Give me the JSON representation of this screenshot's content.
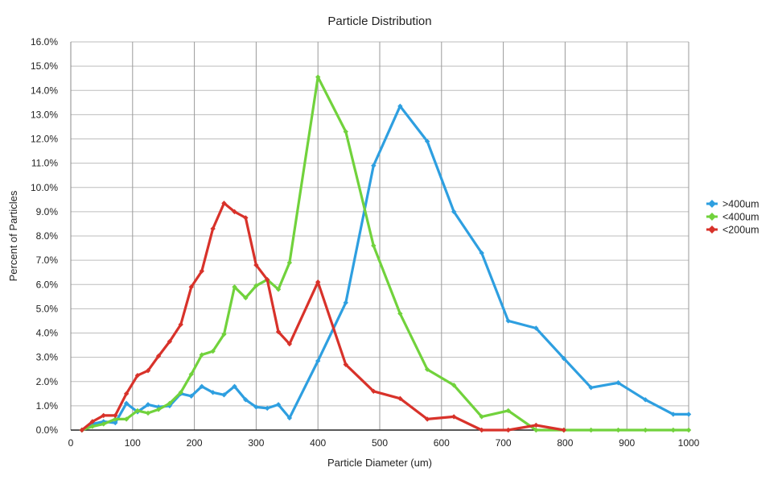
{
  "chart_data": {
    "type": "line",
    "title": "Particle Distribution",
    "xlabel": "Particle Diameter (um)",
    "ylabel": "Percent of Particles",
    "xlim": [
      0,
      1000
    ],
    "ylim": [
      0,
      16
    ],
    "x_ticks": [
      "0",
      "100",
      "200",
      "300",
      "400",
      "500",
      "600",
      "700",
      "800",
      "900",
      "1000"
    ],
    "y_ticks": [
      "0.0%",
      "1.0%",
      "2.0%",
      "3.0%",
      "4.0%",
      "5.0%",
      "6.0%",
      "7.0%",
      "8.0%",
      "9.0%",
      "10.0%",
      "11.0%",
      "12.0%",
      "13.0%",
      "14.0%",
      "15.0%",
      "16.0%"
    ],
    "grid": {
      "vertical": true,
      "horizontal": true
    },
    "legend_position": "right",
    "series": [
      {
        "name": ">400um",
        "color": "#2e9fe0",
        "points": [
          [
            18,
            0.0
          ],
          [
            35,
            0.25
          ],
          [
            53,
            0.35
          ],
          [
            72,
            0.3
          ],
          [
            90,
            1.1
          ],
          [
            108,
            0.75
          ],
          [
            125,
            1.05
          ],
          [
            142,
            0.95
          ],
          [
            160,
            1.0
          ],
          [
            178,
            1.5
          ],
          [
            195,
            1.4
          ],
          [
            212,
            1.8
          ],
          [
            230,
            1.55
          ],
          [
            248,
            1.45
          ],
          [
            265,
            1.8
          ],
          [
            283,
            1.25
          ],
          [
            300,
            0.95
          ],
          [
            318,
            0.9
          ],
          [
            336,
            1.05
          ],
          [
            354,
            0.5
          ],
          [
            400,
            2.85
          ],
          [
            445,
            5.25
          ],
          [
            490,
            10.9
          ],
          [
            533,
            13.35
          ],
          [
            577,
            11.9
          ],
          [
            620,
            9.0
          ],
          [
            665,
            7.3
          ],
          [
            708,
            4.5
          ],
          [
            753,
            4.2
          ],
          [
            798,
            2.95
          ],
          [
            842,
            1.75
          ],
          [
            886,
            1.95
          ],
          [
            930,
            1.25
          ],
          [
            975,
            0.65
          ],
          [
            1000,
            0.65
          ]
        ]
      },
      {
        "name": "<400um",
        "color": "#71d23c",
        "points": [
          [
            18,
            0.0
          ],
          [
            35,
            0.15
          ],
          [
            53,
            0.25
          ],
          [
            72,
            0.45
          ],
          [
            90,
            0.45
          ],
          [
            108,
            0.8
          ],
          [
            125,
            0.7
          ],
          [
            142,
            0.85
          ],
          [
            160,
            1.1
          ],
          [
            178,
            1.55
          ],
          [
            195,
            2.3
          ],
          [
            212,
            3.1
          ],
          [
            230,
            3.25
          ],
          [
            248,
            3.95
          ],
          [
            265,
            5.9
          ],
          [
            283,
            5.45
          ],
          [
            300,
            5.95
          ],
          [
            318,
            6.2
          ],
          [
            336,
            5.8
          ],
          [
            354,
            6.9
          ],
          [
            400,
            14.55
          ],
          [
            445,
            12.3
          ],
          [
            490,
            7.6
          ],
          [
            533,
            4.8
          ],
          [
            577,
            2.5
          ],
          [
            620,
            1.85
          ],
          [
            665,
            0.55
          ],
          [
            708,
            0.8
          ],
          [
            753,
            0.0
          ],
          [
            798,
            0.0
          ],
          [
            842,
            0.0
          ],
          [
            886,
            0.0
          ],
          [
            930,
            0.0
          ],
          [
            975,
            0.0
          ],
          [
            1000,
            0.0
          ]
        ]
      },
      {
        "name": "<200um",
        "color": "#d8322a",
        "points": [
          [
            18,
            0.0
          ],
          [
            35,
            0.35
          ],
          [
            53,
            0.6
          ],
          [
            72,
            0.6
          ],
          [
            90,
            1.5
          ],
          [
            108,
            2.25
          ],
          [
            125,
            2.45
          ],
          [
            142,
            3.05
          ],
          [
            160,
            3.65
          ],
          [
            178,
            4.35
          ],
          [
            195,
            5.9
          ],
          [
            212,
            6.55
          ],
          [
            230,
            8.3
          ],
          [
            248,
            9.35
          ],
          [
            265,
            9.0
          ],
          [
            283,
            8.75
          ],
          [
            300,
            6.8
          ],
          [
            318,
            6.2
          ],
          [
            336,
            4.05
          ],
          [
            354,
            3.55
          ],
          [
            400,
            6.1
          ],
          [
            445,
            2.7
          ],
          [
            490,
            1.6
          ],
          [
            533,
            1.3
          ],
          [
            577,
            0.45
          ],
          [
            620,
            0.55
          ],
          [
            665,
            0.0
          ],
          [
            708,
            0.0
          ],
          [
            753,
            0.2
          ],
          [
            798,
            0.0
          ]
        ]
      }
    ]
  }
}
